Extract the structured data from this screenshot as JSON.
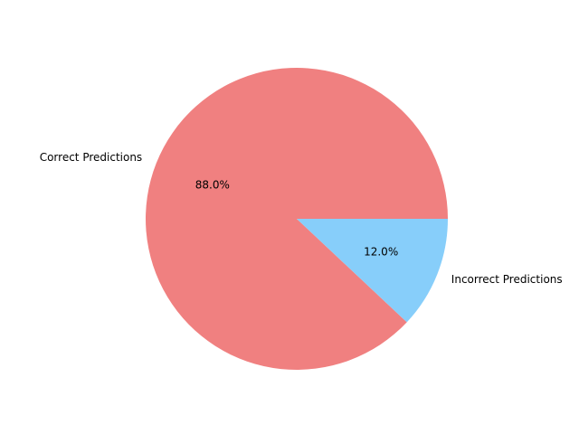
{
  "chart_data": {
    "type": "pie",
    "title": "",
    "labels": [
      "Correct Predictions",
      "Incorrect Predictions"
    ],
    "values": [
      88.0,
      12.0
    ],
    "value_labels": [
      "88.0%",
      "12.0%"
    ],
    "colors": [
      "#f08080",
      "#87cefa"
    ],
    "start_angle_deg": 0,
    "direction": "counterclockwise",
    "legend": "none"
  }
}
